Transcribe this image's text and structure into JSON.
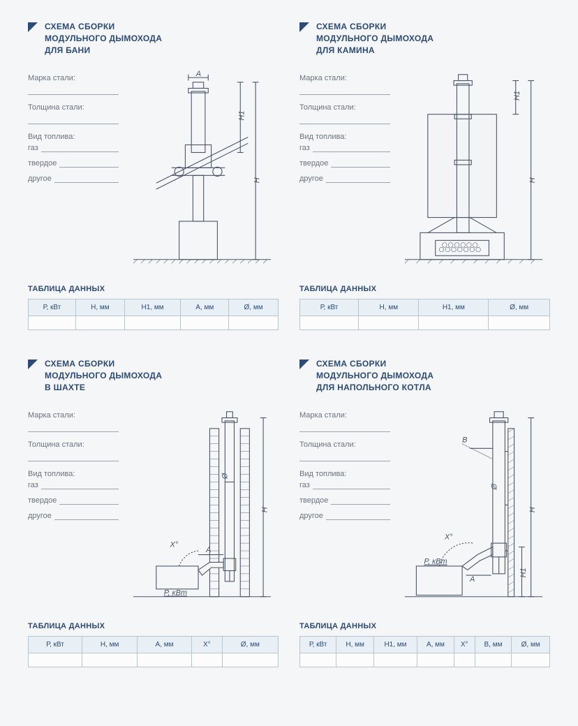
{
  "colors": {
    "accent": "#2b4a7a",
    "text_muted": "#6b7280",
    "table_header_bg": "#e8f0f5",
    "table_border": "#b8c5d0",
    "page_bg": "#f5f6f8",
    "line_color": "#9ca3af",
    "diagram_stroke": "#4a5568"
  },
  "typography": {
    "title_fontsize": 12,
    "field_fontsize": 11,
    "table_fontsize": 10
  },
  "shared": {
    "field_steel_brand": "Марка стали:",
    "field_steel_thickness": "Толщина стали:",
    "field_fuel_type": "Вид топлива:",
    "fuel_gas": "газ",
    "fuel_solid": "твердое",
    "fuel_other": "другое",
    "table_title": "ТАБЛИЦА ДАННЫХ"
  },
  "panels": [
    {
      "title": "СХЕМА СБОРКИ\nМОДУЛЬНОГО ДЫМОХОДА\nДЛЯ БАНИ",
      "diagram": {
        "type": "schematic",
        "labels": [
          "A",
          "H1",
          "H"
        ],
        "elements": "bathhouse-chimney"
      },
      "columns": [
        "Р, кВт",
        "Н, мм",
        "Н1, мм",
        "А, мм",
        "Ø, мм"
      ]
    },
    {
      "title": "СХЕМА СБОРКИ\nМОДУЛЬНОГО ДЫМОХОДА\nДЛЯ КАМИНА",
      "diagram": {
        "type": "schematic",
        "labels": [
          "H1",
          "H"
        ],
        "elements": "fireplace-chimney"
      },
      "columns": [
        "Р, кВт",
        "Н, мм",
        "Н1, мм",
        "Ø, мм"
      ]
    },
    {
      "title": "СХЕМА СБОРКИ\nМОДУЛЬНОГО ДЫМОХОДА\nВ ШАХТЕ",
      "diagram": {
        "type": "schematic",
        "labels": [
          "Ø",
          "H",
          "X°",
          "A",
          "Р, кВт"
        ],
        "elements": "shaft-chimney"
      },
      "columns": [
        "Р, кВт",
        "Н, мм",
        "А, мм",
        "X°",
        "Ø, мм"
      ]
    },
    {
      "title": "СХЕМА СБОРКИ\nМОДУЛЬНОГО ДЫМОХОДА\nДЛЯ НАПОЛЬНОГО КОТЛА",
      "diagram": {
        "type": "schematic",
        "labels": [
          "B",
          "Ø",
          "H",
          "X°",
          "Р, кВт",
          "A",
          "H1"
        ],
        "elements": "floor-boiler-chimney"
      },
      "columns": [
        "Р, кВт",
        "Н, мм",
        "Н1, мм",
        "А, мм",
        "X°",
        "В, мм",
        "Ø, мм"
      ]
    }
  ]
}
